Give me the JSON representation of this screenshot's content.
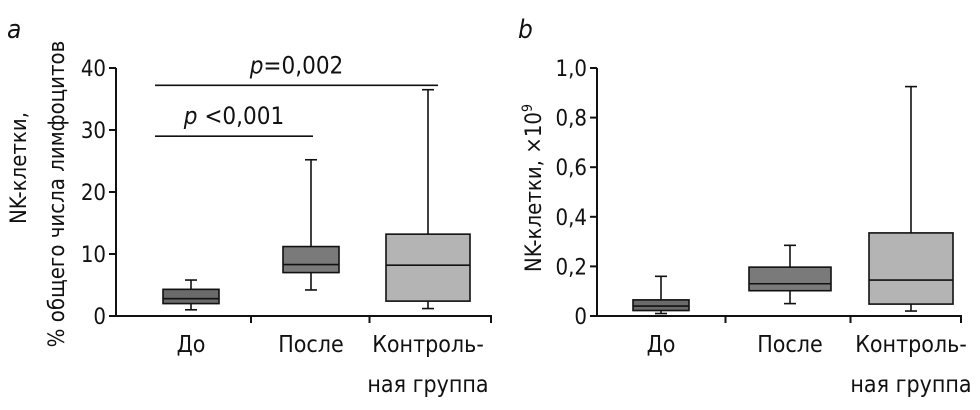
{
  "chart_data": [
    {
      "type": "box",
      "panel_label": "a",
      "ylabel_line1": "NK-клетки,",
      "ylabel_line2": "% общего числа лимфоцитов",
      "ylim": [
        0,
        40
      ],
      "yticks": [
        "0",
        "10",
        "20",
        "30",
        "40"
      ],
      "ytick_values": [
        0,
        10,
        20,
        30,
        40
      ],
      "categories": [
        {
          "line1": "До",
          "line2": ""
        },
        {
          "line1": "После",
          "line2": ""
        },
        {
          "line1": "Контроль-",
          "line2": "ная группа"
        }
      ],
      "boxes": [
        {
          "min": 1.0,
          "q1": 2.0,
          "median": 2.8,
          "q3": 4.3,
          "max": 5.8,
          "color": "#6a6a6a"
        },
        {
          "min": 4.2,
          "q1": 7.0,
          "median": 8.3,
          "q3": 11.2,
          "max": 25.2,
          "color": "#7a7a7a"
        },
        {
          "min": 1.2,
          "q1": 2.4,
          "median": 8.2,
          "q3": 13.2,
          "max": 36.5,
          "color": "#b4b4b4"
        }
      ],
      "annotations": [
        {
          "p_symbol": "p",
          "p_text": " <0,001",
          "from": 0,
          "to": 1,
          "y": 29
        },
        {
          "p_symbol": "p",
          "p_text": "=0,002",
          "from": 0,
          "to": 2,
          "y": 37.2
        }
      ]
    },
    {
      "type": "box",
      "panel_label": "b",
      "ylabel_line1": "NK-клетки, ×10",
      "ylabel_sup": "9",
      "ylim": [
        0,
        1.0
      ],
      "yticks": [
        "0",
        "0,2",
        "0,4",
        "0,6",
        "0,8",
        "1,0"
      ],
      "ytick_values": [
        0,
        0.2,
        0.4,
        0.6,
        0.8,
        1.0
      ],
      "categories": [
        {
          "line1": "До",
          "line2": ""
        },
        {
          "line1": "После",
          "line2": ""
        },
        {
          "line1": "Контроль-",
          "line2": "ная группа"
        }
      ],
      "boxes": [
        {
          "min": 0.01,
          "q1": 0.022,
          "median": 0.04,
          "q3": 0.065,
          "max": 0.16,
          "color": "#6a6a6a"
        },
        {
          "min": 0.05,
          "q1": 0.102,
          "median": 0.13,
          "q3": 0.197,
          "max": 0.285,
          "color": "#7a7a7a"
        },
        {
          "min": 0.02,
          "q1": 0.048,
          "median": 0.145,
          "q3": 0.335,
          "max": 0.925,
          "color": "#b4b4b4"
        }
      ],
      "annotations": []
    }
  ]
}
